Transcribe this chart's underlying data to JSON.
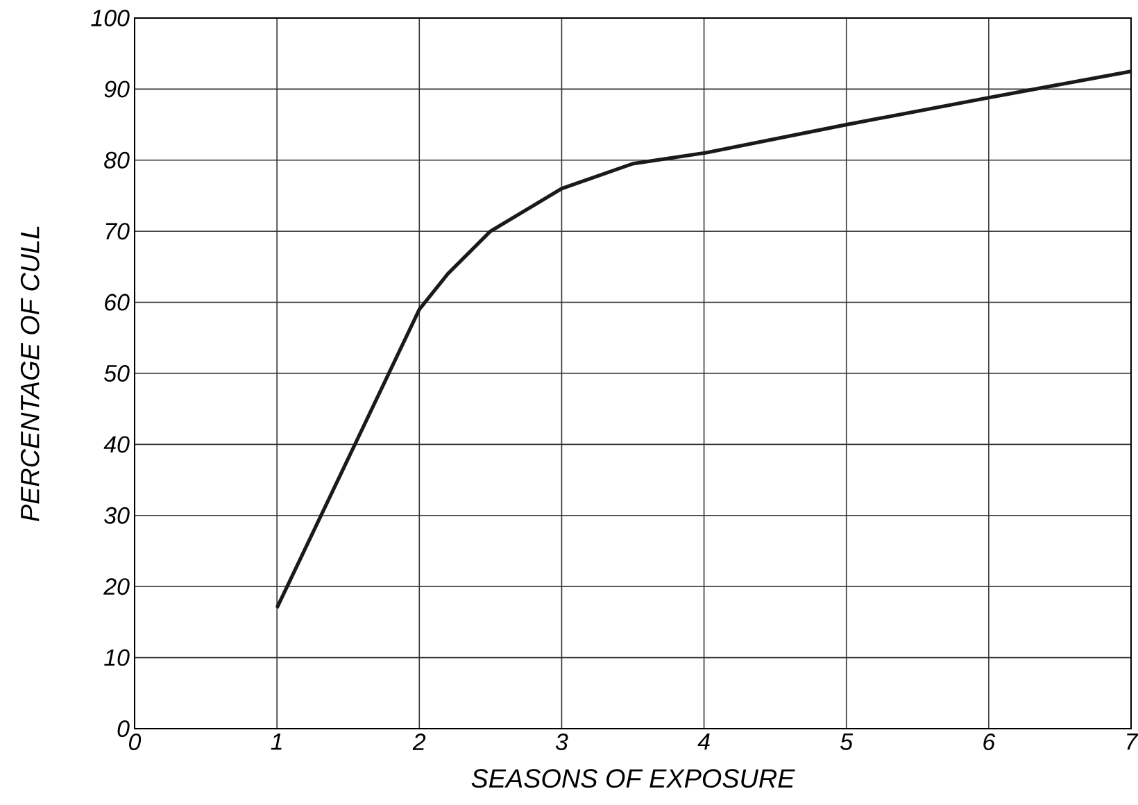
{
  "chart_data": {
    "type": "line",
    "xlabel": "SEASONS OF EXPOSURE",
    "ylabel": "PERCENTAGE OF CULL",
    "x": [
      1,
      1.5,
      2,
      2.2,
      2.5,
      3,
      3.5,
      4,
      5,
      6,
      7
    ],
    "values": [
      17,
      38,
      59,
      64,
      70,
      76,
      79.5,
      81,
      85,
      88.8,
      92.5
    ],
    "color": "#1a1a1a",
    "xlim": [
      0,
      7
    ],
    "ylim": [
      0,
      100
    ],
    "xticks": [
      0,
      1,
      2,
      3,
      4,
      5,
      6,
      7
    ],
    "yticks": [
      0,
      10,
      20,
      30,
      40,
      50,
      60,
      70,
      80,
      90,
      100
    ],
    "grid": true,
    "marker": "none",
    "line_style": "solid"
  }
}
